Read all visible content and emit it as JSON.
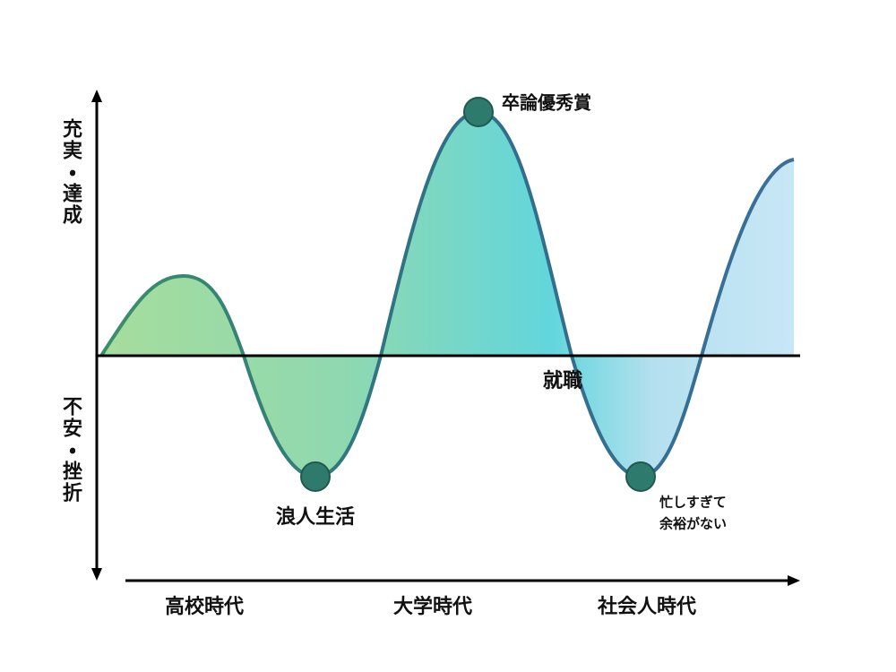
{
  "axes": {
    "y_top": "充実・達成",
    "y_bottom": "不安・挫折"
  },
  "periods": [
    "高校時代",
    "大学時代",
    "社会人時代"
  ],
  "events": [
    {
      "label": "卒論優秀賞"
    },
    {
      "label": "就職"
    },
    {
      "label": "浪人生活"
    },
    {
      "lines": [
        "忙しすぎて",
        "余裕がない"
      ]
    }
  ]
}
